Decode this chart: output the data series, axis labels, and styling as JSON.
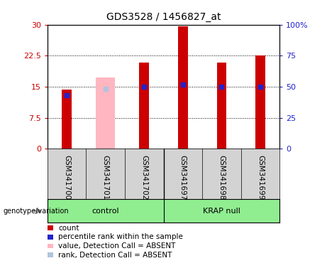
{
  "title": "GDS3528 / 1456827_at",
  "samples": [
    "GSM341700",
    "GSM341701",
    "GSM341702",
    "GSM341697",
    "GSM341698",
    "GSM341699"
  ],
  "count_values": [
    14.3,
    null,
    20.8,
    29.5,
    20.8,
    22.5
  ],
  "rank_values": [
    13.0,
    null,
    15.0,
    15.5,
    15.0,
    15.0
  ],
  "absent_value": 17.2,
  "absent_rank": 14.5,
  "absent_sample_idx": 1,
  "count_color": "#cc0000",
  "rank_color": "#2222cc",
  "absent_value_color": "#ffb6c1",
  "absent_rank_color": "#b0c4de",
  "ylim_left": [
    0,
    30
  ],
  "ylim_right": [
    0,
    100
  ],
  "yticks_left": [
    0,
    7.5,
    15,
    22.5,
    30
  ],
  "yticks_right": [
    0,
    25,
    50,
    75,
    100
  ],
  "ytick_labels_left": [
    "0",
    "7.5",
    "15",
    "22.5",
    "30"
  ],
  "ytick_labels_right": [
    "0",
    "25",
    "50",
    "75",
    "100%"
  ],
  "left_tick_color": "#cc0000",
  "right_tick_color": "#2222cc",
  "bar_width": 0.25,
  "legend_items": [
    {
      "label": "count",
      "color": "#cc0000"
    },
    {
      "label": "percentile rank within the sample",
      "color": "#2222cc"
    },
    {
      "label": "value, Detection Call = ABSENT",
      "color": "#ffb6c1"
    },
    {
      "label": "rank, Detection Call = ABSENT",
      "color": "#b0c4de"
    }
  ],
  "genotype_label": "genotype/variation",
  "group_labels": [
    "control",
    "KRAP null"
  ],
  "group_color": "#90ee90"
}
